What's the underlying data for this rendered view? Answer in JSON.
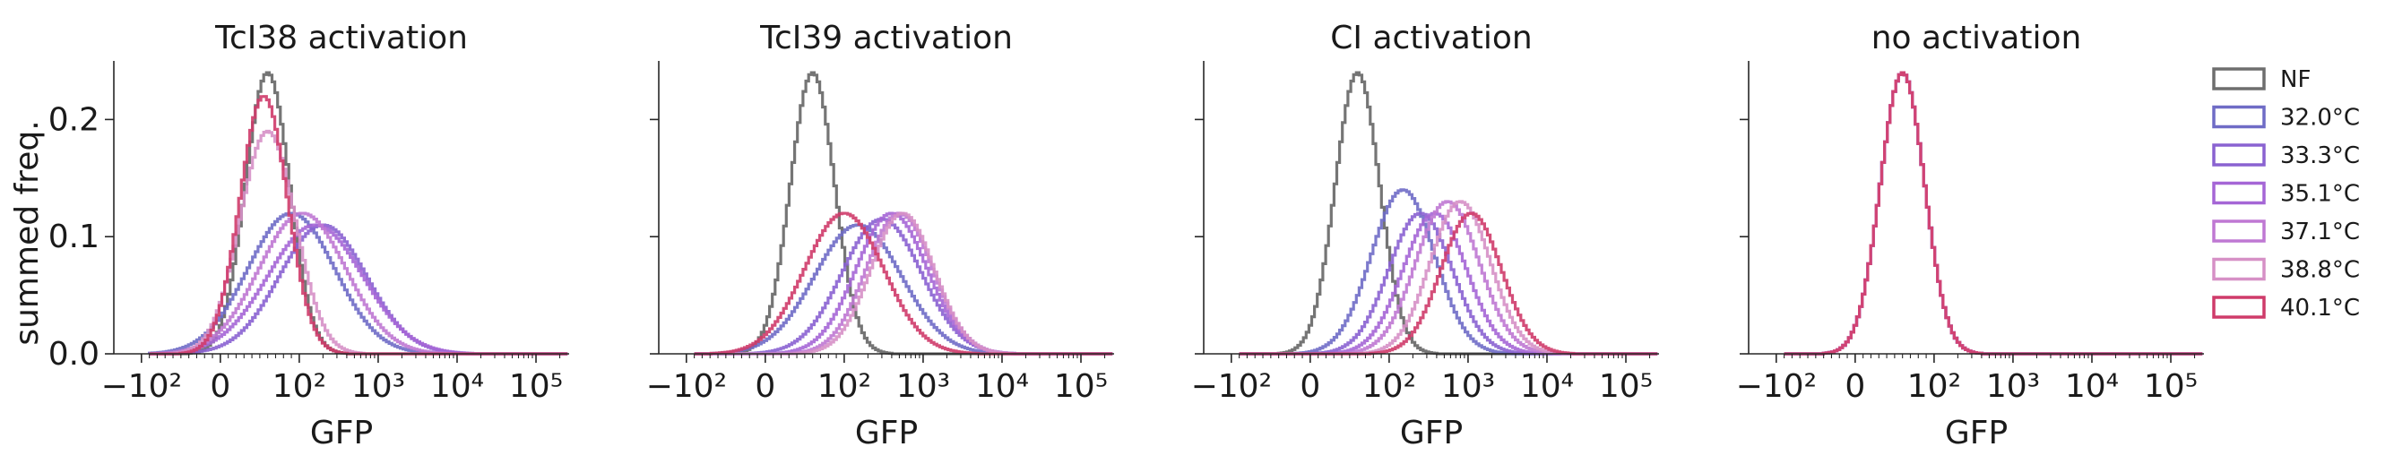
{
  "figure": {
    "ylabel": "summed freq.",
    "xlabel": "GFP",
    "background": "#ffffff"
  },
  "legend": {
    "placement": "right",
    "entries": [
      {
        "label": "NF",
        "color": "#6e6e6e"
      },
      {
        "label": "32.0°C",
        "color": "#6f6cc6"
      },
      {
        "label": "33.3°C",
        "color": "#8a62d1"
      },
      {
        "label": "35.1°C",
        "color": "#a566d6"
      },
      {
        "label": "37.1°C",
        "color": "#bf78d3"
      },
      {
        "label": "38.8°C",
        "color": "#d690c6"
      },
      {
        "label": "40.1°C",
        "color": "#cf3b6a"
      }
    ]
  },
  "chart_data": [
    {
      "type": "histogram",
      "title": "TcI38 activation",
      "xscale": "symlog",
      "xticks": [
        "−10²",
        "0",
        "10²",
        "10³",
        "10⁴",
        "10⁵"
      ],
      "yticks": [
        "0.0",
        "0.1",
        "0.2"
      ],
      "ylim": [
        0,
        0.25
      ],
      "series": [
        {
          "name": "NF",
          "peak": 0.24,
          "mode_gfp": 60,
          "spread_decades": 0.28
        },
        {
          "name": "32.0°C",
          "peak": 0.12,
          "mode_gfp": 90,
          "spread_decades": 0.55
        },
        {
          "name": "33.3°C",
          "peak": 0.11,
          "mode_gfp": 200,
          "spread_decades": 0.55
        },
        {
          "name": "35.1°C",
          "peak": 0.11,
          "mode_gfp": 160,
          "spread_decades": 0.6
        },
        {
          "name": "37.1°C",
          "peak": 0.12,
          "mode_gfp": 110,
          "spread_decades": 0.55
        },
        {
          "name": "38.8°C",
          "peak": 0.19,
          "mode_gfp": 60,
          "spread_decades": 0.35
        },
        {
          "name": "40.1°C",
          "peak": 0.22,
          "mode_gfp": 55,
          "spread_decades": 0.3
        }
      ]
    },
    {
      "type": "histogram",
      "title": "TcI39 activation",
      "xscale": "symlog",
      "xticks": [
        "−10²",
        "0",
        "10²",
        "10³",
        "10⁴",
        "10⁵"
      ],
      "yticks": [
        "",
        "",
        ""
      ],
      "ylim": [
        0,
        0.25
      ],
      "series": [
        {
          "name": "NF",
          "peak": 0.24,
          "mode_gfp": 60,
          "spread_decades": 0.28
        },
        {
          "name": "32.0°C",
          "peak": 0.11,
          "mode_gfp": 150,
          "spread_decades": 0.55
        },
        {
          "name": "33.3°C",
          "peak": 0.115,
          "mode_gfp": 300,
          "spread_decades": 0.5
        },
        {
          "name": "35.1°C",
          "peak": 0.12,
          "mode_gfp": 400,
          "spread_decades": 0.45
        },
        {
          "name": "37.1°C",
          "peak": 0.12,
          "mode_gfp": 500,
          "spread_decades": 0.42
        },
        {
          "name": "38.8°C",
          "peak": 0.12,
          "mode_gfp": 550,
          "spread_decades": 0.4
        },
        {
          "name": "40.1°C",
          "peak": 0.12,
          "mode_gfp": 100,
          "spread_decades": 0.5
        }
      ]
    },
    {
      "type": "histogram",
      "title": "CI activation",
      "xscale": "symlog",
      "xticks": [
        "−10²",
        "0",
        "10²",
        "10³",
        "10⁴",
        "10⁵"
      ],
      "yticks": [
        "",
        "",
        ""
      ],
      "ylim": [
        0,
        0.25
      ],
      "series": [
        {
          "name": "NF",
          "peak": 0.24,
          "mode_gfp": 60,
          "spread_decades": 0.28
        },
        {
          "name": "32.0°C",
          "peak": 0.14,
          "mode_gfp": 150,
          "spread_decades": 0.4
        },
        {
          "name": "33.3°C",
          "peak": 0.12,
          "mode_gfp": 250,
          "spread_decades": 0.4
        },
        {
          "name": "35.1°C",
          "peak": 0.12,
          "mode_gfp": 380,
          "spread_decades": 0.4
        },
        {
          "name": "37.1°C",
          "peak": 0.13,
          "mode_gfp": 550,
          "spread_decades": 0.4
        },
        {
          "name": "38.8°C",
          "peak": 0.13,
          "mode_gfp": 800,
          "spread_decades": 0.38
        },
        {
          "name": "40.1°C",
          "peak": 0.12,
          "mode_gfp": 1100,
          "spread_decades": 0.38
        }
      ]
    },
    {
      "type": "histogram",
      "title": "no activation",
      "xscale": "symlog",
      "xticks": [
        "−10²",
        "0",
        "10²",
        "10³",
        "10⁴",
        "10⁵"
      ],
      "yticks": [
        "",
        "",
        ""
      ],
      "ylim": [
        0,
        0.25
      ],
      "series": [
        {
          "name": "NF",
          "peak": 0.24,
          "mode_gfp": 60,
          "spread_decades": 0.28
        },
        {
          "name": "32.0°C",
          "peak": 0.24,
          "mode_gfp": 60,
          "spread_decades": 0.28
        },
        {
          "name": "33.3°C",
          "peak": 0.24,
          "mode_gfp": 60,
          "spread_decades": 0.28
        },
        {
          "name": "35.1°C",
          "peak": 0.24,
          "mode_gfp": 60,
          "spread_decades": 0.28
        },
        {
          "name": "37.1°C",
          "peak": 0.24,
          "mode_gfp": 60,
          "spread_decades": 0.28
        },
        {
          "name": "38.8°C",
          "peak": 0.24,
          "mode_gfp": 60,
          "spread_decades": 0.28
        },
        {
          "name": "40.1°C",
          "peak": 0.24,
          "mode_gfp": 60,
          "spread_decades": 0.28
        }
      ]
    }
  ]
}
